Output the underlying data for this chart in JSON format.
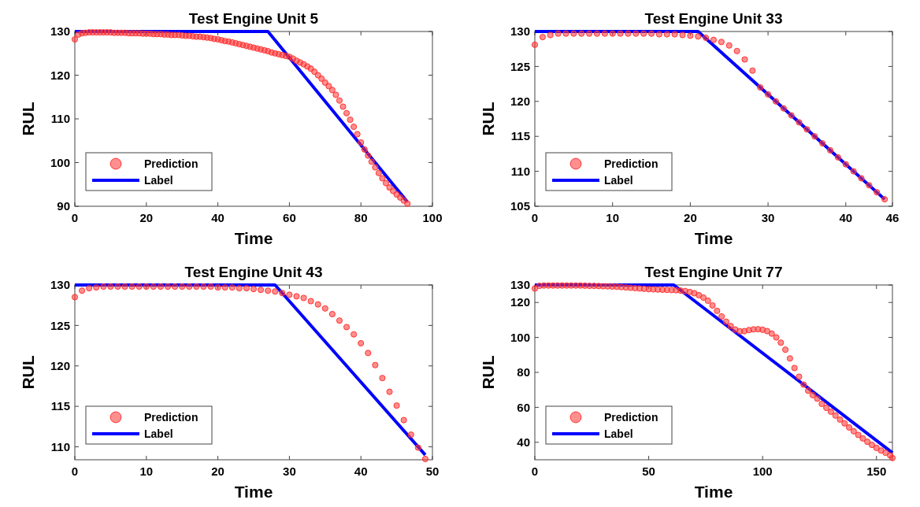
{
  "chart_data": [
    {
      "type": "line",
      "title": "Test Engine Unit 5",
      "xlabel": "Time",
      "ylabel": "RUL",
      "xlim": [
        0,
        100
      ],
      "xticks": [
        0,
        20,
        40,
        60,
        80,
        100
      ],
      "ylim": [
        90,
        130
      ],
      "yticks": [
        90,
        100,
        110,
        120,
        130
      ],
      "legend": "bottom left",
      "series": [
        {
          "name": "Prediction",
          "type": "scatter",
          "marker": "circle",
          "color": "#ff3333",
          "x": [
            0,
            1,
            2,
            3,
            4,
            5,
            6,
            7,
            8,
            9,
            10,
            11,
            12,
            13,
            14,
            15,
            16,
            17,
            18,
            19,
            20,
            21,
            22,
            23,
            24,
            25,
            26,
            27,
            28,
            29,
            30,
            31,
            32,
            33,
            34,
            35,
            36,
            37,
            38,
            39,
            40,
            41,
            42,
            43,
            44,
            45,
            46,
            47,
            48,
            49,
            50,
            51,
            52,
            53,
            54,
            55,
            56,
            57,
            58,
            59,
            60,
            61,
            62,
            63,
            64,
            65,
            66,
            67,
            68,
            69,
            70,
            71,
            72,
            73,
            74,
            75,
            76,
            77,
            78,
            79,
            80,
            81,
            82,
            83,
            84,
            85,
            86,
            87,
            88,
            89,
            90,
            91,
            92,
            93
          ],
          "values": [
            128.2,
            129.3,
            129.6,
            129.7,
            129.8,
            129.8,
            129.8,
            129.8,
            129.8,
            129.8,
            129.8,
            129.7,
            129.7,
            129.7,
            129.7,
            129.6,
            129.6,
            129.6,
            129.6,
            129.5,
            129.5,
            129.5,
            129.4,
            129.4,
            129.4,
            129.3,
            129.3,
            129.2,
            129.2,
            129.2,
            129.1,
            129.0,
            129.0,
            128.9,
            128.8,
            128.8,
            128.7,
            128.6,
            128.5,
            128.3,
            128.2,
            128.0,
            127.8,
            127.7,
            127.5,
            127.3,
            127.1,
            126.9,
            126.7,
            126.5,
            126.3,
            126.1,
            125.9,
            125.7,
            125.5,
            125.2,
            125.0,
            124.8,
            124.6,
            124.4,
            124.2,
            123.8,
            123.3,
            122.9,
            122.5,
            122.0,
            121.5,
            120.8,
            120.0,
            119.2,
            118.3,
            117.5,
            116.6,
            115.5,
            114.2,
            112.8,
            111.3,
            109.8,
            108.2,
            106.5,
            104.6,
            103.0,
            101.6,
            100.2,
            98.9,
            97.6,
            96.4,
            95.3,
            94.3,
            93.5,
            92.7,
            92.0,
            91.3,
            90.6
          ]
        },
        {
          "name": "Label",
          "marker": "none",
          "color": "#0000ff",
          "line_style": "solid",
          "x": [
            0,
            54,
            93
          ],
          "values": [
            130,
            130,
            91
          ]
        }
      ]
    },
    {
      "type": "line",
      "title": "Test Engine Unit 33",
      "xlabel": "Time",
      "ylabel": "RUL",
      "xlim": [
        0,
        46
      ],
      "xticks": [
        0,
        10,
        20,
        30,
        40,
        46
      ],
      "ylim": [
        105,
        130
      ],
      "yticks": [
        105,
        110,
        115,
        120,
        125,
        130
      ],
      "legend": "bottom left",
      "series": [
        {
          "name": "Prediction",
          "type": "scatter",
          "marker": "circle",
          "color": "#ff3333",
          "x": [
            0,
            1,
            2,
            3,
            4,
            5,
            6,
            7,
            8,
            9,
            10,
            11,
            12,
            13,
            14,
            15,
            16,
            17,
            18,
            19,
            20,
            21,
            22,
            23,
            24,
            25,
            26,
            27,
            28,
            29,
            30,
            31,
            32,
            33,
            34,
            35,
            36,
            37,
            38,
            39,
            40,
            41,
            42,
            43,
            44,
            45
          ],
          "values": [
            128.1,
            129.2,
            129.5,
            129.7,
            129.7,
            129.7,
            129.7,
            129.7,
            129.7,
            129.7,
            129.7,
            129.7,
            129.7,
            129.7,
            129.7,
            129.7,
            129.6,
            129.6,
            129.6,
            129.5,
            129.4,
            129.3,
            129.1,
            128.8,
            128.5,
            128.0,
            127.2,
            126.0,
            124.4,
            122.0,
            121.0,
            120.0,
            119.0,
            118.0,
            117.0,
            116.0,
            115.0,
            114.0,
            113.0,
            112.0,
            111.0,
            110.0,
            109.0,
            108.0,
            107.0,
            106.0
          ]
        },
        {
          "name": "Label",
          "marker": "none",
          "color": "#0000ff",
          "line_style": "solid",
          "x": [
            0,
            21,
            45
          ],
          "values": [
            130,
            130,
            106
          ]
        }
      ]
    },
    {
      "type": "line",
      "title": "Test Engine Unit 43",
      "xlabel": "Time",
      "ylabel": "RUL",
      "xlim": [
        0,
        50
      ],
      "xticks": [
        0,
        10,
        20,
        30,
        40,
        50
      ],
      "ylim": [
        108.4,
        130
      ],
      "yticks": [
        110,
        115,
        120,
        125,
        130
      ],
      "legend": "bottom left",
      "series": [
        {
          "name": "Prediction",
          "type": "scatter",
          "marker": "circle",
          "color": "#ff3333",
          "x": [
            0,
            1,
            2,
            3,
            4,
            5,
            6,
            7,
            8,
            9,
            10,
            11,
            12,
            13,
            14,
            15,
            16,
            17,
            18,
            19,
            20,
            21,
            22,
            23,
            24,
            25,
            26,
            27,
            28,
            29,
            30,
            31,
            32,
            33,
            34,
            35,
            36,
            37,
            38,
            39,
            40,
            41,
            42,
            43,
            44,
            45,
            46,
            47,
            48,
            49
          ],
          "values": [
            128.5,
            129.3,
            129.6,
            129.7,
            129.8,
            129.8,
            129.8,
            129.8,
            129.8,
            129.8,
            129.8,
            129.8,
            129.8,
            129.8,
            129.8,
            129.8,
            129.8,
            129.8,
            129.8,
            129.8,
            129.7,
            129.7,
            129.7,
            129.6,
            129.6,
            129.5,
            129.4,
            129.3,
            129.2,
            129.0,
            128.8,
            128.6,
            128.4,
            128.0,
            127.6,
            127.1,
            126.4,
            125.6,
            124.8,
            123.9,
            122.8,
            121.6,
            120.1,
            118.5,
            116.8,
            115.1,
            113.3,
            111.5,
            109.9,
            108.5
          ]
        },
        {
          "name": "Label",
          "marker": "none",
          "color": "#0000ff",
          "line_style": "solid",
          "x": [
            0,
            28,
            49
          ],
          "values": [
            130,
            130,
            109
          ]
        }
      ]
    },
    {
      "type": "line",
      "title": "Test Engine Unit 77",
      "xlabel": "Time",
      "ylabel": "RUL",
      "xlim": [
        0,
        157
      ],
      "xticks": [
        0,
        50,
        100,
        150
      ],
      "ylim": [
        30,
        130
      ],
      "yticks": [
        40,
        60,
        80,
        100,
        120,
        130
      ],
      "legend": "bottom left",
      "series": [
        {
          "name": "Prediction",
          "type": "scatter",
          "marker": "circle",
          "color": "#ff3333",
          "x": [
            0,
            2,
            4,
            6,
            8,
            10,
            12,
            14,
            16,
            18,
            20,
            22,
            24,
            26,
            28,
            30,
            32,
            34,
            36,
            38,
            40,
            42,
            44,
            46,
            48,
            50,
            52,
            54,
            56,
            58,
            60,
            62,
            64,
            66,
            68,
            70,
            72,
            74,
            76,
            78,
            80,
            82,
            84,
            86,
            88,
            90,
            92,
            94,
            96,
            98,
            100,
            102,
            104,
            106,
            108,
            110,
            112,
            114,
            116,
            118,
            120,
            122,
            124,
            126,
            128,
            130,
            132,
            134,
            136,
            138,
            140,
            142,
            144,
            146,
            148,
            150,
            152,
            154,
            156,
            157
          ],
          "values": [
            128,
            129.5,
            129.7,
            129.7,
            129.7,
            129.7,
            129.7,
            129.7,
            129.7,
            129.7,
            129.7,
            129.6,
            129.5,
            129.5,
            129.4,
            129.3,
            129.2,
            129.1,
            129,
            128.8,
            128.6,
            128.4,
            128.2,
            128,
            127.8,
            127.6,
            127.5,
            127.4,
            127.3,
            127.2,
            127.1,
            127,
            126.8,
            126.5,
            126,
            125.3,
            124.2,
            122.8,
            121,
            118.3,
            115.2,
            112,
            109,
            106.5,
            104.5,
            103.5,
            103.6,
            104.2,
            104.6,
            104.7,
            104.4,
            103.6,
            102.2,
            100,
            97,
            93,
            88,
            82.5,
            77.5,
            73,
            69.5,
            67,
            65,
            62,
            59.7,
            57.5,
            55.3,
            53,
            50.8,
            48.5,
            46.3,
            44.2,
            42.2,
            40.3,
            38.5,
            36.8,
            35.3,
            34,
            32.5,
            31
          ]
        },
        {
          "name": "Label",
          "marker": "none",
          "color": "#0000ff",
          "line_style": "solid",
          "x": [
            0,
            61,
            157
          ],
          "values": [
            130,
            130,
            34
          ]
        }
      ]
    }
  ]
}
